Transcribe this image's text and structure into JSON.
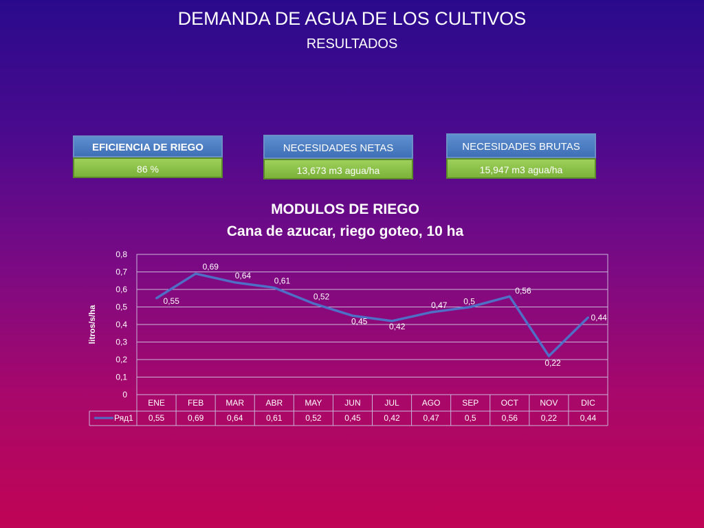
{
  "header": {
    "title": "DEMANDA  DE AGUA DE LOS CULTIVOS",
    "subtitle": "RESULTADOS"
  },
  "boxes": [
    {
      "label": "EFICIENCIA DE RIEGO",
      "value": "86 %"
    },
    {
      "label": "NECESIDADES NETAS",
      "value": "13,673  m3 agua/ha"
    },
    {
      "label": "NECESIDADES BRUTAS",
      "value": "15,947   m3 agua/ha"
    }
  ],
  "colors": {
    "line": "#4f6fc6",
    "gridline": "#c8b8d8",
    "head_bg": "#4a7cc2",
    "value_bg": "#8cc24a"
  },
  "chart_data": {
    "type": "line",
    "title": "MODULOS DE RIEGO",
    "subtitle": "Cana de azucar, riego goteo, 10 ha",
    "ylabel": "litros/s/ha",
    "xlabel": "",
    "ylim": [
      0,
      0.8
    ],
    "yticks": [
      "0",
      "0,1",
      "0,2",
      "0,3",
      "0,4",
      "0,5",
      "0,6",
      "0,7",
      "0,8"
    ],
    "categories": [
      "ENE",
      "FEB",
      "MAR",
      "ABR",
      "MAY",
      "JUN",
      "JUL",
      "AGO",
      "SEP",
      "OCT",
      "NOV",
      "DIC"
    ],
    "series": [
      {
        "name": "Ряд1",
        "values": [
          0.55,
          0.69,
          0.64,
          0.61,
          0.52,
          0.45,
          0.42,
          0.47,
          0.5,
          0.56,
          0.22,
          0.44
        ],
        "labels": [
          "0,55",
          "0,69",
          "0,64",
          "0,61",
          "0,52",
          "0,45",
          "0,42",
          "0,47",
          "0,5",
          "0,56",
          "0,22",
          "0,44"
        ]
      }
    ],
    "grid": true,
    "data_table": true
  }
}
